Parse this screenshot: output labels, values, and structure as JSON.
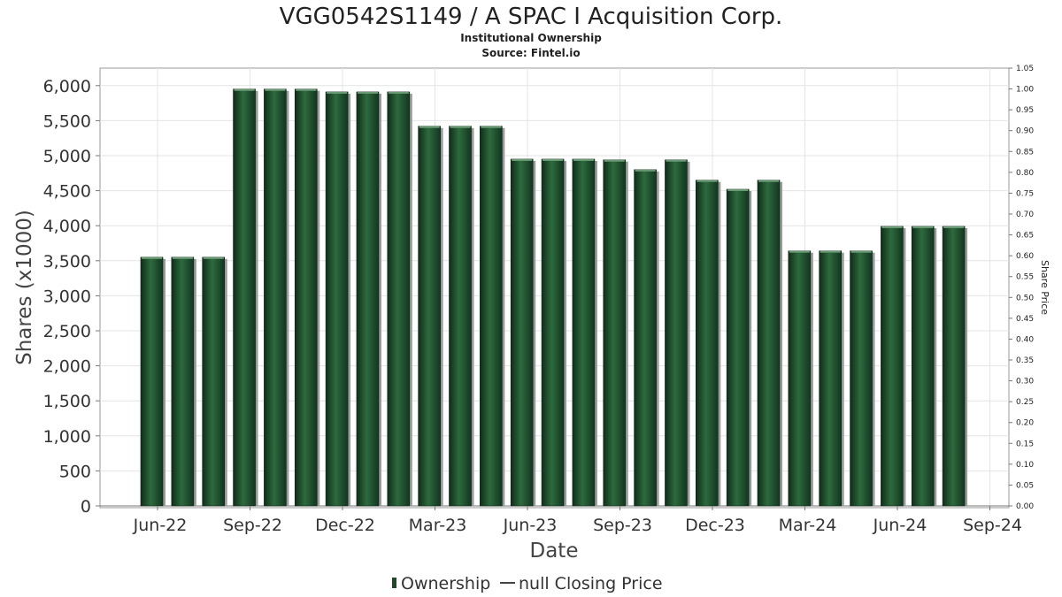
{
  "chart_data": {
    "type": "bar",
    "title": "VGG0542S1149 / A SPAC I Acquisition Corp.",
    "subtitle": "Institutional Ownership",
    "source": "Source: Fintel.io",
    "xlabel": "Date",
    "ylabel": "Shares (x1000)",
    "y2label": "Share Price",
    "ylim": [
      0,
      6250
    ],
    "y2lim": [
      0,
      1.05
    ],
    "yticks": [
      "0",
      "500",
      "1,000",
      "1,500",
      "2,000",
      "2,500",
      "3,000",
      "3,500",
      "4,000",
      "4,500",
      "5,000",
      "5,500",
      "6,000"
    ],
    "y2ticks": [
      "0.00",
      "0.05",
      "0.10",
      "0.15",
      "0.20",
      "0.25",
      "0.30",
      "0.35",
      "0.40",
      "0.45",
      "0.50",
      "0.55",
      "0.60",
      "0.65",
      "0.70",
      "0.75",
      "0.80",
      "0.85",
      "0.90",
      "0.95",
      "1.00",
      "1.05"
    ],
    "xticks": [
      "Jun-22",
      "Sep-22",
      "Dec-22",
      "Mar-23",
      "Jun-23",
      "Sep-23",
      "Dec-23",
      "Mar-24",
      "Jun-24",
      "Sep-24"
    ],
    "grid": true,
    "legend_position": "bottom",
    "series": [
      {
        "name": "Ownership",
        "color": "#1e4a2a",
        "values": [
          3550,
          3550,
          3550,
          5950,
          5950,
          5950,
          5910,
          5910,
          5910,
          5420,
          5420,
          5420,
          4950,
          4950,
          4950,
          4940,
          4800,
          4940,
          4650,
          4520,
          4650,
          3640,
          3640,
          3640,
          3990,
          3990,
          3990
        ]
      }
    ],
    "legend": [
      {
        "label": "Ownership",
        "color": "#1e4a2a"
      },
      {
        "label": "null Closing Price",
        "color": "#444444"
      }
    ]
  }
}
